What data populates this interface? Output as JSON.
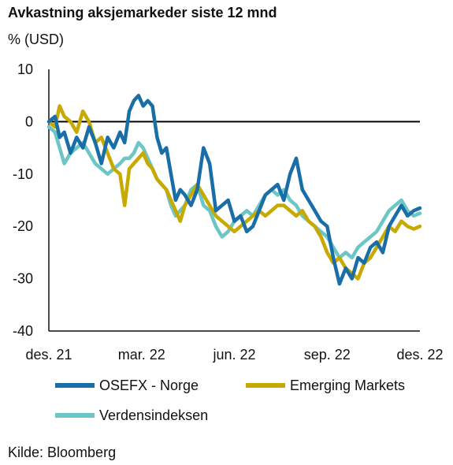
{
  "chart_data": {
    "type": "line",
    "title": "Avkastning aksjemarkeder siste 12 mnd",
    "ylabel": "% (USD)",
    "ylim": [
      -40,
      10
    ],
    "yticks": [
      10,
      0,
      -10,
      -20,
      -30,
      -40
    ],
    "ytick_labels": [
      "10",
      "0",
      "-10",
      "-20",
      "-30",
      "-40"
    ],
    "xlim": [
      0,
      12
    ],
    "xticks": [
      0,
      3,
      6,
      9,
      12
    ],
    "xtick_labels": [
      "des. 21",
      "mar. 22",
      "jun. 22",
      "sep. 22",
      "des. 22"
    ],
    "zero_line": true,
    "grid": false,
    "legend_position": "bottom",
    "source": "Kilde: Bloomberg",
    "series": [
      {
        "name": "OSEFX - Norge",
        "color": "#1a6ea8",
        "x": [
          0,
          0.2,
          0.35,
          0.5,
          0.7,
          0.9,
          1.1,
          1.3,
          1.5,
          1.7,
          1.9,
          2.1,
          2.3,
          2.45,
          2.6,
          2.75,
          2.9,
          3.05,
          3.2,
          3.35,
          3.5,
          3.65,
          3.8,
          3.95,
          4.1,
          4.25,
          4.4,
          4.6,
          4.8,
          5.0,
          5.2,
          5.4,
          5.6,
          5.8,
          6.0,
          6.2,
          6.4,
          6.6,
          6.8,
          7.0,
          7.2,
          7.4,
          7.6,
          7.8,
          8.0,
          8.2,
          8.4,
          8.6,
          8.8,
          9.0,
          9.2,
          9.4,
          9.6,
          9.8,
          10.0,
          10.2,
          10.4,
          10.6,
          10.8,
          11.0,
          11.2,
          11.4,
          11.6,
          11.8,
          12.0
        ],
        "y": [
          0,
          1,
          -3,
          -2,
          -6,
          -3,
          -5,
          -1,
          -4,
          -8,
          -3,
          -5,
          -2,
          -4,
          2,
          4,
          5,
          3,
          4,
          3,
          -3,
          -6,
          -5,
          -10,
          -15,
          -13,
          -14,
          -16,
          -13,
          -5,
          -8,
          -17,
          -16,
          -15,
          -19,
          -18,
          -21,
          -20,
          -17,
          -14,
          -13,
          -12,
          -15,
          -10,
          -7,
          -13,
          -15,
          -17,
          -19,
          -20,
          -26,
          -31,
          -28,
          -30,
          -26,
          -27,
          -24,
          -23,
          -25,
          -20,
          -18,
          -16,
          -18,
          -17,
          -16.5
        ]
      },
      {
        "name": "Emerging Markets",
        "color": "#c7a900",
        "x": [
          0,
          0.2,
          0.35,
          0.5,
          0.7,
          0.9,
          1.1,
          1.3,
          1.5,
          1.7,
          1.9,
          2.1,
          2.3,
          2.45,
          2.6,
          2.75,
          2.9,
          3.05,
          3.2,
          3.35,
          3.5,
          3.65,
          3.8,
          3.95,
          4.1,
          4.25,
          4.4,
          4.6,
          4.8,
          5.0,
          5.2,
          5.4,
          5.6,
          5.8,
          6.0,
          6.2,
          6.4,
          6.6,
          6.8,
          7.0,
          7.2,
          7.4,
          7.6,
          7.8,
          8.0,
          8.2,
          8.4,
          8.6,
          8.8,
          9.0,
          9.2,
          9.4,
          9.6,
          9.8,
          10.0,
          10.2,
          10.4,
          10.6,
          10.8,
          11.0,
          11.2,
          11.4,
          11.6,
          11.8,
          12.0
        ],
        "y": [
          0,
          -1,
          3,
          1,
          0,
          -2,
          2,
          0,
          -4,
          -3,
          -6,
          -9,
          -10,
          -16,
          -9,
          -8,
          -7,
          -6,
          -8,
          -9,
          -11,
          -12,
          -13,
          -15,
          -17,
          -19,
          -16,
          -14,
          -12,
          -14,
          -16,
          -18,
          -19,
          -20,
          -21,
          -20,
          -19,
          -18,
          -17,
          -18,
          -17,
          -16,
          -16,
          -17,
          -18,
          -17,
          -19,
          -20,
          -22,
          -25,
          -27,
          -26,
          -28,
          -29,
          -30,
          -27,
          -26,
          -24,
          -22,
          -20,
          -21,
          -19,
          -20,
          -20.5,
          -20
        ]
      },
      {
        "name": "Verdensindeksen",
        "color": "#6cc6c6",
        "x": [
          0,
          0.2,
          0.35,
          0.5,
          0.7,
          0.9,
          1.1,
          1.3,
          1.5,
          1.7,
          1.9,
          2.1,
          2.3,
          2.45,
          2.6,
          2.75,
          2.9,
          3.05,
          3.2,
          3.35,
          3.5,
          3.65,
          3.8,
          3.95,
          4.1,
          4.25,
          4.4,
          4.6,
          4.8,
          5.0,
          5.2,
          5.4,
          5.6,
          5.8,
          6.0,
          6.2,
          6.4,
          6.6,
          6.8,
          7.0,
          7.2,
          7.4,
          7.6,
          7.8,
          8.0,
          8.2,
          8.4,
          8.6,
          8.8,
          9.0,
          9.2,
          9.4,
          9.6,
          9.8,
          10.0,
          10.2,
          10.4,
          10.6,
          10.8,
          11.0,
          11.2,
          11.4,
          11.6,
          11.8,
          12.0
        ],
        "y": [
          -1,
          -2,
          -5,
          -8,
          -6,
          -5,
          -4,
          -6,
          -8,
          -9,
          -10,
          -9,
          -8,
          -7,
          -7,
          -6,
          -4,
          -5,
          -7,
          -9,
          -11,
          -12,
          -13,
          -16,
          -18,
          -17,
          -16,
          -13,
          -12,
          -16,
          -17,
          -20,
          -22,
          -21,
          -19,
          -18,
          -17,
          -18,
          -16,
          -14,
          -13,
          -14,
          -13,
          -15,
          -16,
          -18,
          -19,
          -20,
          -21,
          -22,
          -24,
          -26,
          -25,
          -26,
          -24,
          -23,
          -22,
          -21,
          -19,
          -17,
          -16,
          -15,
          -17,
          -18,
          -17.5
        ]
      }
    ]
  }
}
